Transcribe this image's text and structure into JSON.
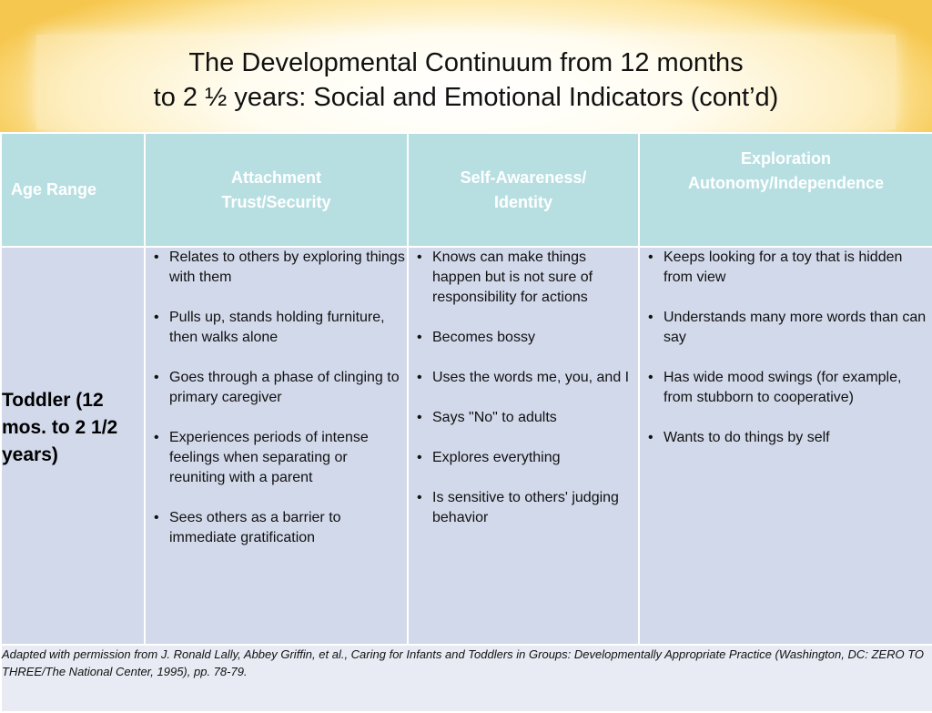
{
  "slide": {
    "title_line1": "The Developmental Continuum from 12 months",
    "title_line2": "to 2 ½ years: Social and Emotional Indicators (cont’d)"
  },
  "table": {
    "headers": [
      "Age Range",
      "Attachment\nTrust/Security",
      "Self-Awareness/\nIdentity",
      "Exploration\nAutonomy/Independence"
    ],
    "age_range": "Toddler (12 mos. to 2 1/2 years)",
    "attachment": [
      "Relates to others by exploring things with them",
      "Pulls up, stands holding furniture, then walks alone",
      "Goes through a phase of clinging to primary caregiver",
      "Experiences periods of intense feelings when separating or reuniting with a parent",
      "Sees others as a barrier to immediate gratification"
    ],
    "self_awareness": [
      "Knows can make things happen but is not sure of responsibility for actions",
      "Becomes bossy",
      "Uses the words me, you, and I",
      "Says \"No\" to adults",
      "Explores everything",
      "Is sensitive to others' judging behavior"
    ],
    "exploration": [
      "Keeps looking for a toy that is hidden from view",
      "Understands many more words than can say",
      "Has wide mood swings (for example, from stubborn to cooperative)",
      "Wants to do things by self"
    ],
    "footer": "Adapted with permission from J. Ronald Lally, Abbey Griffin, et al., Caring for Infants and Toddlers in Groups: Developmentally Appropriate Practice (Washington, DC: ZERO TO THREE/The National Center, 1995), pp. 78-79."
  },
  "colors": {
    "header_cell": "#b7dfe2",
    "body_cell": "#d2d9ea",
    "footer_cell": "#e8ebf4",
    "title_glow": "#f6c74e"
  }
}
